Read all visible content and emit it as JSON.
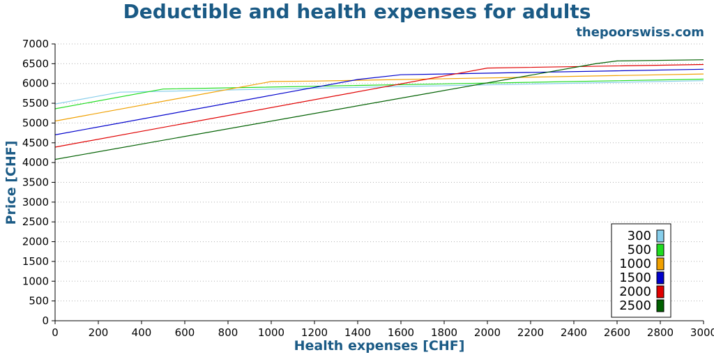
{
  "chart_data": {
    "type": "line",
    "title": "Deductible and health expenses for adults",
    "source": "thepoorswiss.com",
    "xlabel": "Health expenses [CHF]",
    "ylabel": "Price [CHF]",
    "xlim": [
      0,
      3000
    ],
    "ylim": [
      0,
      7000
    ],
    "xticks": [
      0,
      200,
      400,
      600,
      800,
      1000,
      1200,
      1400,
      1600,
      1800,
      2000,
      2200,
      2400,
      2600,
      2800,
      3000
    ],
    "yticks": [
      0,
      500,
      1000,
      1500,
      2000,
      2500,
      3000,
      3500,
      4000,
      4500,
      5000,
      5500,
      6000,
      6500,
      7000
    ],
    "grid": "horizontal-dotted",
    "legend_position": "bottom-right",
    "series": [
      {
        "name": "300",
        "color": "#87ceeb",
        "points": [
          [
            0,
            5480
          ],
          [
            300,
            5780
          ],
          [
            1100,
            5870
          ],
          [
            3000,
            6070
          ]
        ]
      },
      {
        "name": "500",
        "color": "#1fdc1f",
        "points": [
          [
            0,
            5360
          ],
          [
            500,
            5860
          ],
          [
            1200,
            5930
          ],
          [
            3000,
            6110
          ]
        ]
      },
      {
        "name": "1000",
        "color": "#f0a000",
        "points": [
          [
            0,
            5050
          ],
          [
            1000,
            6050
          ],
          [
            1200,
            6060
          ],
          [
            3000,
            6240
          ]
        ]
      },
      {
        "name": "1500",
        "color": "#0000cc",
        "points": [
          [
            0,
            4700
          ],
          [
            1000,
            5700
          ],
          [
            1400,
            6100
          ],
          [
            1600,
            6220
          ],
          [
            3000,
            6360
          ]
        ]
      },
      {
        "name": "2000",
        "color": "#e00000",
        "points": [
          [
            0,
            4390
          ],
          [
            2000,
            6390
          ],
          [
            3000,
            6480
          ]
        ]
      },
      {
        "name": "2500",
        "color": "#006000",
        "points": [
          [
            0,
            4080
          ],
          [
            2500,
            6500
          ],
          [
            2600,
            6570
          ],
          [
            3000,
            6600
          ]
        ]
      }
    ]
  }
}
